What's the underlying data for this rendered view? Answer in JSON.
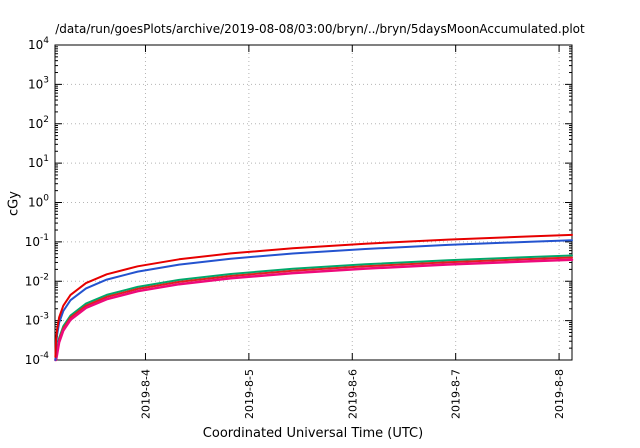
{
  "chart_data": {
    "type": "line",
    "title": "/data/run/goesPlots/archive/2019-08-08/03:00/bryn/../bryn/5daysMoonAccumulated.plot",
    "xlabel": "Coordinated Universal Time (UTC)",
    "ylabel": "cGy",
    "y_scale": "log",
    "ylim": [
      0.0001,
      10000
    ],
    "y_tick_exponents": [
      4,
      3,
      2,
      1,
      0,
      -1,
      -2,
      -3,
      -4
    ],
    "grid": true,
    "legend": "none",
    "x_range_days": [
      0,
      5
    ],
    "x_ticks": [
      {
        "label": "2019-8-4",
        "day": 0.875
      },
      {
        "label": "2019-8-5",
        "day": 1.875
      },
      {
        "label": "2019-8-6",
        "day": 2.875
      },
      {
        "label": "2019-8-7",
        "day": 3.875
      },
      {
        "label": "2019-8-8",
        "day": 4.875
      }
    ],
    "x_days": [
      0.004,
      0.01,
      0.02,
      0.04,
      0.08,
      0.15,
      0.3,
      0.5,
      0.8,
      1.2,
      1.7,
      2.3,
      3.0,
      3.8,
      4.6,
      5.0
    ],
    "series": [
      {
        "name": "series-green",
        "color": "#00a86b",
        "width": 2,
        "values": [
          3.6e-05,
          9e-05,
          0.00018,
          0.00036,
          0.00072,
          0.00135,
          0.0027,
          0.0045,
          0.0072,
          0.0108,
          0.0153,
          0.0207,
          0.027,
          0.0342,
          0.0414,
          0.045
        ]
      },
      {
        "name": "series-crimson",
        "color": "#e02020",
        "width": 2,
        "values": [
          3.2e-05,
          8e-05,
          0.00016,
          0.00032,
          0.00064,
          0.0012,
          0.0024,
          0.004,
          0.0064,
          0.0096,
          0.0136,
          0.0184,
          0.024,
          0.0304,
          0.0368,
          0.04
        ]
      },
      {
        "name": "series-magenta",
        "color": "#ee0a7b",
        "width": 2.5,
        "values": [
          2.8e-05,
          7e-05,
          0.00014,
          0.00028,
          0.00056,
          0.00105,
          0.0021,
          0.0035,
          0.0056,
          0.0084,
          0.0119,
          0.0161,
          0.021,
          0.0266,
          0.0322,
          0.035
        ]
      },
      {
        "name": "series-blue",
        "color": "#2453cf",
        "width": 2,
        "values": [
          8.8e-05,
          0.00022,
          0.00044,
          0.00088,
          0.00176,
          0.0033,
          0.0066,
          0.011,
          0.0176,
          0.0264,
          0.0374,
          0.0506,
          0.066,
          0.0836,
          0.1012,
          0.11
        ]
      },
      {
        "name": "series-red",
        "color": "#e60000",
        "width": 2,
        "values": [
          0.00012,
          0.0003,
          0.0006,
          0.0012,
          0.0024,
          0.0045,
          0.009,
          0.015,
          0.024,
          0.036,
          0.051,
          0.069,
          0.09,
          0.114,
          0.138,
          0.15
        ]
      }
    ]
  }
}
